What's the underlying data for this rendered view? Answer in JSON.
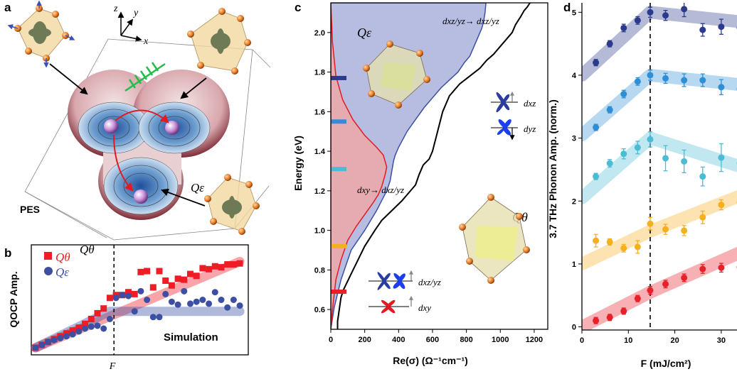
{
  "figure": {
    "panel_a": {
      "letter": "a",
      "pes_label": "PES",
      "q_theta": "Qθ",
      "q_eps": "Qε",
      "axis_x": "x",
      "axis_y": "y",
      "axis_z": "z"
    },
    "panel_b": {
      "letter": "b",
      "simulation_label": "Simulation"
    },
    "panel_c": {
      "letter": "c",
      "ann_top": "dxz/yz→ dxz/yz",
      "ann_mid": "dxy→ dxz/yz",
      "q_eps": "Qε",
      "q_theta": "Qθ",
      "orb_xz": "dxz",
      "orb_yz": "dyz",
      "orb_xzyz": "dxz/yz",
      "orb_xy": "dxy"
    },
    "panel_d": {
      "letter": "d"
    }
  },
  "colors": {
    "q_theta": "#ee1c25",
    "q_eps": "#3c4fa3",
    "c_blue_fill": "#a9b1dc",
    "c_red_fill": "#f2a5a5",
    "d_series": [
      "#2c3a8c",
      "#2e8fd6",
      "#4cbcd4",
      "#f5b020",
      "#e8202a"
    ]
  },
  "chart_data": [
    {
      "panel": "b",
      "type": "scatter",
      "xlabel": "F",
      "ylabel": "QOCP Amp.",
      "dashed_vline_x": 0.38,
      "series": [
        {
          "name": "Qθ",
          "x": [
            0.0,
            0.03,
            0.06,
            0.09,
            0.12,
            0.15,
            0.18,
            0.21,
            0.24,
            0.27,
            0.3,
            0.33,
            0.36,
            0.39,
            0.42,
            0.45,
            0.48,
            0.51,
            0.54,
            0.57,
            0.6,
            0.63,
            0.66,
            0.69,
            0.72,
            0.75,
            0.78,
            0.81,
            0.84,
            0.87,
            0.9,
            0.93,
            0.96,
            0.99
          ],
          "y": [
            0.0,
            0.03,
            0.06,
            0.09,
            0.12,
            0.15,
            0.18,
            0.21,
            0.25,
            0.3,
            0.36,
            0.41,
            0.52,
            0.55,
            0.55,
            0.58,
            0.56,
            0.79,
            0.8,
            0.63,
            0.8,
            0.7,
            0.65,
            0.72,
            0.71,
            0.77,
            0.75,
            0.83,
            0.82,
            0.85,
            0.84,
            0.87,
            0.87,
            0.88
          ]
        },
        {
          "name": "Qε",
          "x": [
            0.0,
            0.03,
            0.06,
            0.09,
            0.12,
            0.15,
            0.18,
            0.21,
            0.24,
            0.27,
            0.3,
            0.33,
            0.36,
            0.39,
            0.42,
            0.45,
            0.48,
            0.51,
            0.54,
            0.57,
            0.6,
            0.63,
            0.66,
            0.69,
            0.72,
            0.75,
            0.78,
            0.81,
            0.84,
            0.87,
            0.9,
            0.93,
            0.96,
            0.99
          ],
          "y": [
            0.0,
            0.03,
            0.06,
            0.08,
            0.1,
            0.12,
            0.14,
            0.17,
            0.2,
            0.22,
            0.23,
            0.2,
            0.3,
            0.52,
            0.55,
            0.54,
            0.38,
            0.59,
            0.5,
            0.32,
            0.32,
            0.56,
            0.48,
            0.45,
            0.59,
            0.46,
            0.48,
            0.5,
            0.46,
            0.58,
            0.5,
            0.42,
            0.5,
            0.44
          ]
        }
      ],
      "fit_lines": [
        {
          "name": "Qθ",
          "x": [
            0.0,
            0.99
          ],
          "y": [
            0.0,
            0.9
          ]
        },
        {
          "name": "Qε",
          "x": [
            0.0,
            0.36,
            0.99
          ],
          "y": [
            0.0,
            0.38,
            0.38
          ]
        }
      ],
      "annotation": "Simulation"
    },
    {
      "panel": "c",
      "type": "line",
      "xlabel": "Re(σ) (Ω⁻¹cm⁻¹)",
      "ylabel": "Energy (eV)",
      "xlim": [
        0,
        1280
      ],
      "ylim": [
        0.5,
        2.15
      ],
      "xticks": [
        0,
        200,
        400,
        600,
        800,
        1000,
        1200
      ],
      "yticks": [
        0.6,
        0.8,
        1.0,
        1.2,
        1.4,
        1.6,
        1.8,
        2.0
      ],
      "series": [
        {
          "type": "line",
          "x": [
            40,
            40,
            50,
            55,
            60,
            75,
            120,
            160,
            200,
            260,
            300,
            360,
            420,
            470,
            500,
            520,
            545,
            580,
            600,
            630,
            660,
            700,
            760,
            820,
            880,
            920,
            960,
            1000,
            1040,
            1070,
            1090,
            1120,
            1140,
            1160,
            1175,
            1180
          ],
          "y": [
            0.5,
            0.54,
            0.6,
            0.63,
            0.66,
            0.7,
            0.78,
            0.85,
            0.92,
            1.0,
            1.05,
            1.1,
            1.15,
            1.2,
            1.23,
            1.28,
            1.33,
            1.36,
            1.4,
            1.5,
            1.6,
            1.68,
            1.74,
            1.78,
            1.82,
            1.86,
            1.89,
            1.93,
            1.97,
            2.0,
            2.04,
            2.08,
            2.11,
            2.13,
            2.15,
            2.15
          ]
        },
        {
          "type": "area",
          "x": [
            0,
            20,
            60,
            120,
            200,
            270,
            300,
            330,
            350,
            360,
            370,
            380,
            400,
            450,
            500,
            550,
            600,
            650,
            700,
            750,
            790,
            820,
            850,
            870,
            890,
            900,
            910,
            915
          ],
          "y": [
            0.5,
            0.61,
            0.75,
            0.9,
            1.0,
            1.1,
            1.15,
            1.2,
            1.25,
            1.3,
            1.35,
            1.38,
            1.42,
            1.5,
            1.56,
            1.62,
            1.67,
            1.72,
            1.76,
            1.8,
            1.85,
            1.88,
            1.94,
            1.98,
            2.02,
            2.05,
            2.1,
            2.15
          ]
        },
        {
          "type": "area",
          "x": [
            0,
            10,
            30,
            60,
            100,
            150,
            200,
            250,
            280,
            300,
            320,
            330,
            310,
            270,
            200,
            130,
            70,
            30,
            10,
            0
          ],
          "y": [
            0.5,
            0.6,
            0.75,
            0.85,
            0.95,
            1.02,
            1.08,
            1.14,
            1.18,
            1.22,
            1.28,
            1.32,
            1.38,
            1.42,
            1.48,
            1.56,
            1.66,
            1.78,
            1.95,
            2.15
          ]
        }
      ],
      "level_markers": [
        {
          "y": 1.77,
          "color": "#2c3a8c"
        },
        {
          "y": 1.55,
          "color": "#2e8fd6"
        },
        {
          "y": 1.31,
          "color": "#4cbcd4"
        },
        {
          "y": 0.92,
          "color": "#f5b020"
        },
        {
          "y": 0.69,
          "color": "#e8202a"
        }
      ]
    },
    {
      "panel": "d",
      "type": "scatter",
      "xlabel": "F (mJ/cm²)",
      "ylabel": "3.7 THz Phonon Amp. (norm.)",
      "xlim": [
        0,
        34
      ],
      "ylim": [
        -0.05,
        5.15
      ],
      "xticks": [
        0,
        10,
        20,
        30
      ],
      "yticks": [
        0,
        1,
        2,
        3,
        4,
        5
      ],
      "dashed_vline_x": 14.7,
      "series": [
        {
          "x": [
            3,
            6,
            9,
            12,
            14.7,
            18,
            22,
            26,
            30,
            34
          ],
          "y": [
            0.1,
            0.15,
            0.25,
            0.45,
            0.58,
            0.68,
            0.78,
            0.92,
            0.94,
            0.95
          ],
          "err": [
            0.05,
            0.05,
            0.05,
            0.05,
            0.06,
            0.06,
            0.06,
            0.07,
            0.07,
            0.07
          ]
        },
        {
          "x": [
            3,
            6,
            9,
            12,
            14.7,
            18,
            22,
            26,
            30,
            34
          ],
          "y": [
            1.37,
            1.35,
            1.25,
            1.27,
            1.64,
            1.55,
            1.53,
            1.74,
            1.94,
            1.98
          ],
          "err": [
            0.1,
            0.05,
            0.06,
            0.1,
            0.1,
            0.08,
            0.08,
            0.1,
            0.08,
            0.1
          ]
        },
        {
          "x": [
            3,
            6,
            9,
            12,
            14.7,
            18,
            22,
            26,
            30,
            34
          ],
          "y": [
            2.39,
            2.6,
            2.75,
            2.85,
            2.98,
            2.68,
            2.63,
            2.39,
            2.69,
            2.6
          ],
          "err": [
            0.05,
            0.06,
            0.08,
            0.1,
            0.12,
            0.2,
            0.18,
            0.15,
            0.22,
            0.2
          ]
        },
        {
          "x": [
            3,
            6,
            9,
            12,
            14.7,
            18,
            22,
            26,
            30,
            34
          ],
          "y": [
            3.17,
            3.45,
            3.7,
            3.9,
            4.0,
            3.95,
            3.92,
            3.92,
            3.81,
            3.78
          ],
          "err": [
            0.05,
            0.05,
            0.06,
            0.06,
            0.08,
            0.08,
            0.1,
            0.1,
            0.12,
            0.12
          ]
        },
        {
          "x": [
            3,
            6,
            9,
            12,
            14.7,
            18,
            22,
            26,
            30,
            34
          ],
          "y": [
            4.2,
            4.5,
            4.75,
            4.87,
            5.0,
            4.95,
            5.05,
            4.72,
            4.77,
            4.75
          ],
          "err": [
            0.05,
            0.05,
            0.06,
            0.06,
            0.08,
            0.08,
            0.12,
            0.1,
            0.12,
            0.12
          ]
        }
      ],
      "fit_lines": [
        {
          "x": [
            0,
            14.7,
            34
          ],
          "y": [
            0.0,
            0.55,
            1.18
          ]
        },
        {
          "x": [
            0,
            14.7,
            34
          ],
          "y": [
            1.0,
            1.52,
            2.08
          ]
        },
        {
          "x": [
            0,
            14.7,
            34
          ],
          "y": [
            2.05,
            3.0,
            2.55
          ]
        },
        {
          "x": [
            0,
            14.7,
            34
          ],
          "y": [
            3.05,
            4.0,
            3.85
          ]
        },
        {
          "x": [
            0,
            14.7,
            34
          ],
          "y": [
            4.0,
            5.0,
            4.85
          ]
        }
      ]
    }
  ]
}
